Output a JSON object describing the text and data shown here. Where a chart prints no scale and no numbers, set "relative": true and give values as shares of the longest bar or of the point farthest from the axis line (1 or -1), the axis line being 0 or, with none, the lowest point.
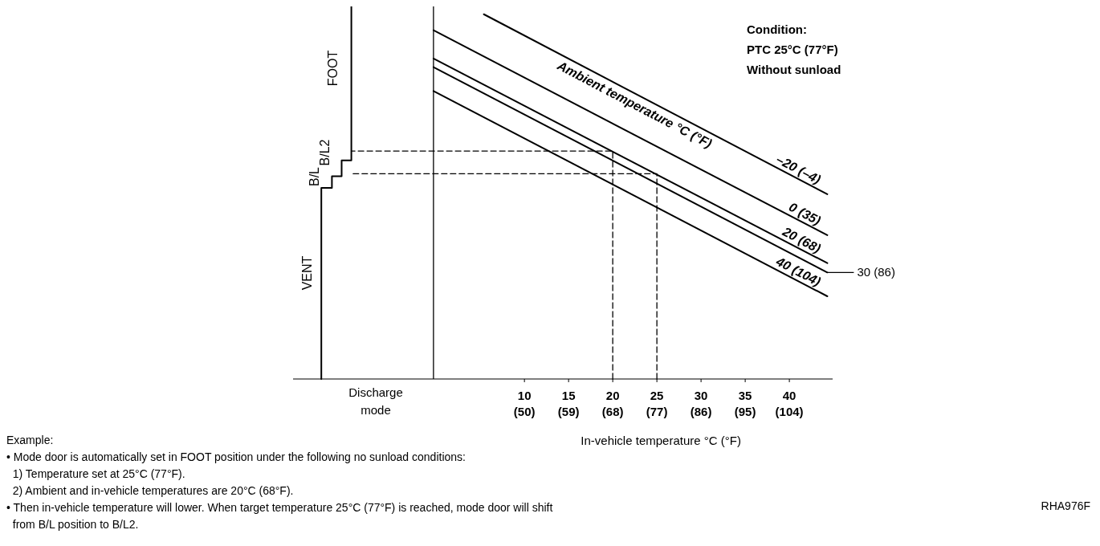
{
  "chart_data": {
    "type": "line",
    "relative": true,
    "xlim": [
      -16.2,
      44.9
    ],
    "xticks": [
      10,
      15,
      20,
      25,
      30,
      35,
      40
    ],
    "x2lim": [
      2.84,
      112.82
    ],
    "x2ticks": [
      {
        "value": 50,
        "label": "(50)"
      },
      {
        "value": 59,
        "label": "(59)"
      },
      {
        "value": 68,
        "label": "(68)"
      },
      {
        "value": 77,
        "label": "(77)"
      },
      {
        "value": 86,
        "label": "(86)"
      },
      {
        "value": 95,
        "label": "(95)"
      },
      {
        "value": 104,
        "label": "(104)"
      }
    ],
    "xlabel": "In-vehicle temperature °C (°F)",
    "legend_title": "Ambient temperature °C (°F)",
    "ref_lines": [
      {
        "axis": "x",
        "value": -0.3,
        "color": "#000000"
      }
    ],
    "series": [
      {
        "name": "–20 (–4)",
        "color": "#000000",
        "x": [
          5.4,
          44.3
        ],
        "values": [
          0.979,
          0.496
        ]
      },
      {
        "name": "0 (35)",
        "color": "#000000",
        "x": [
          -0.3,
          44.3
        ],
        "values": [
          0.936,
          0.386
        ]
      },
      {
        "name": "20 (68)",
        "color": "#000000",
        "x": [
          -0.3,
          44.3
        ],
        "values": [
          0.86,
          0.311
        ]
      },
      {
        "name": "30 (86)",
        "color": "#000000",
        "x": [
          -0.3,
          44.3
        ],
        "values": [
          0.837,
          0.286
        ]
      },
      {
        "name": "40 (104)",
        "color": "#000000",
        "x": [
          -0.3,
          44.3
        ],
        "values": [
          0.773,
          0.222
        ]
      },
      {
        "color": "#000000",
        "x": [
          -13.0,
          -13.0,
          -11.8,
          -11.8,
          -10.7,
          -10.7,
          -9.6,
          -9.6
        ],
        "values": [
          0,
          0.513,
          0.513,
          0.544,
          0.544,
          0.587,
          0.587,
          1
        ]
      },
      {
        "color": "#000000",
        "line_style": "dashed",
        "x": [
          20,
          20,
          -9.6
        ],
        "values": [
          0,
          0.612,
          0.612
        ]
      },
      {
        "color": "#000000",
        "line_style": "dashed",
        "x": [
          25,
          25,
          -9.6
        ],
        "values": [
          0,
          0.551,
          0.551
        ]
      }
    ],
    "annotations": [
      "VENT",
      "B/L",
      "B/L2",
      "FOOT",
      "Discharge mode",
      "Condition:\nPTC 25°C (77°F)\nWithout sunload",
      "Example:\n• Mode door is automatically set in FOOT position under the following no sunload conditions:\n  1) Temperature set at 25°C (77°F).\n  2) Ambient and in-vehicle temperatures are 20°C (68°F).\n• Then in-vehicle temperature will lower. When target temperature 25°C (77°F) is reached, mode door will shift\n  from B/L position to B/L2.",
      "RHA976F"
    ]
  }
}
